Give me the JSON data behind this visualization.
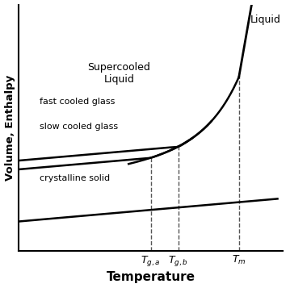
{
  "xlabel": "Temperature",
  "ylabel": "Volume, Enthalpy",
  "background_color": "#ffffff",
  "line_color": "#000000",
  "Tga": 0.5,
  "Tgb": 0.6,
  "Tm": 0.82,
  "label_liquid": "Liquid",
  "label_supercooled": "Supercooled\nLiquid",
  "label_fast": "fast cooled glass",
  "label_slow": "slow cooled glass",
  "label_crystal": "crystalline solid"
}
